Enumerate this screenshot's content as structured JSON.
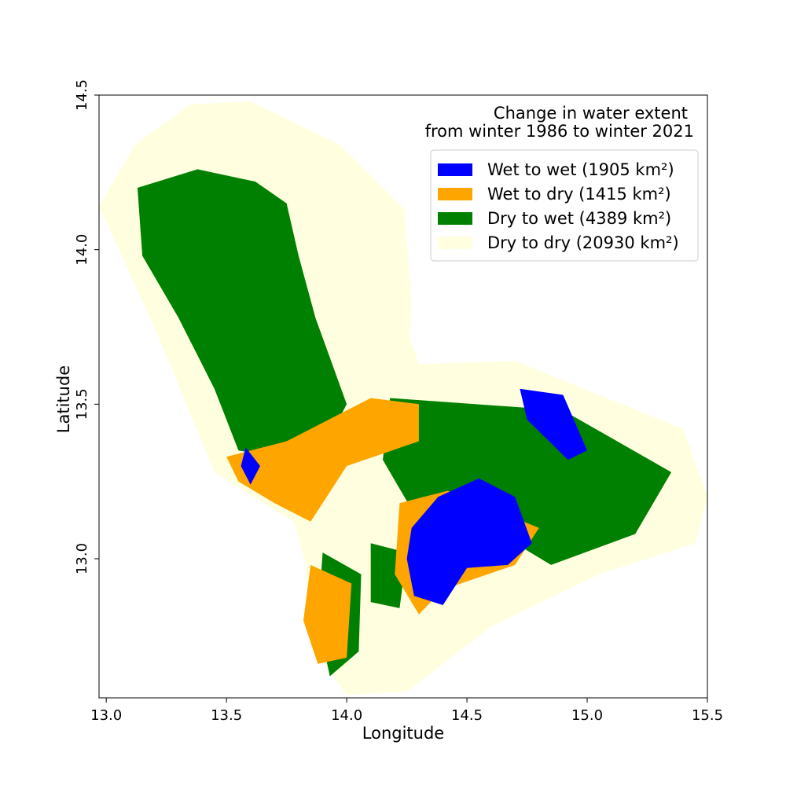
{
  "chart_data": {
    "type": "map",
    "title_lines": [
      "Change in water extent",
      "from winter 1986 to winter 2021"
    ],
    "xlabel": "Longitude",
    "ylabel": "Latitude",
    "xlim": [
      12.97,
      15.5
    ],
    "ylim": [
      12.55,
      14.5
    ],
    "xticks": [
      13.0,
      13.5,
      14.0,
      14.5,
      15.0,
      15.5
    ],
    "xtick_labels": [
      "13.0",
      "13.5",
      "14.0",
      "14.5",
      "15.0",
      "15.5"
    ],
    "yticks": [
      13.0,
      13.5,
      14.0,
      14.5
    ],
    "ytick_labels": [
      "13.0",
      "13.5",
      "14.0",
      "14.5"
    ],
    "legend_position": "upper right",
    "categories": [
      {
        "name": "Wet to wet",
        "area_km2": "1905",
        "color": "#0000ff"
      },
      {
        "name": "Wet to dry",
        "area_km2": "1415",
        "color": "#ffa500"
      },
      {
        "name": "Dry to wet",
        "area_km2": "4389",
        "color": "#008000"
      },
      {
        "name": "Dry to dry",
        "area_km2": "20930",
        "color": "#ffffe0"
      }
    ],
    "legend_labels": [
      "Wet to wet (1905 km²)",
      "Wet to dry (1415 km²)",
      "Dry to wet (4389 km²)",
      "Dry to dry (20930 km²)"
    ],
    "study_area_outline": [
      [
        12.97,
        14.14
      ],
      [
        13.12,
        14.34
      ],
      [
        13.35,
        14.47
      ],
      [
        13.6,
        14.48
      ],
      [
        13.97,
        14.34
      ],
      [
        14.24,
        14.13
      ],
      [
        14.27,
        13.82
      ],
      [
        14.26,
        13.72
      ],
      [
        14.3,
        13.63
      ],
      [
        14.7,
        13.64
      ],
      [
        15.4,
        13.42
      ],
      [
        15.5,
        13.2
      ],
      [
        15.45,
        13.05
      ],
      [
        15.05,
        12.95
      ],
      [
        14.6,
        12.78
      ],
      [
        14.25,
        12.57
      ],
      [
        14.0,
        12.56
      ],
      [
        13.85,
        12.72
      ],
      [
        13.83,
        12.98
      ],
      [
        13.78,
        13.12
      ],
      [
        13.45,
        13.28
      ],
      [
        13.2,
        13.75
      ],
      [
        12.97,
        14.14
      ]
    ],
    "regions": [
      {
        "category": "Dry to wet",
        "polygon": [
          [
            13.13,
            14.2
          ],
          [
            13.38,
            14.26
          ],
          [
            13.62,
            14.22
          ],
          [
            13.75,
            14.15
          ],
          [
            13.8,
            13.98
          ],
          [
            13.87,
            13.78
          ],
          [
            14.0,
            13.5
          ],
          [
            13.92,
            13.38
          ],
          [
            13.7,
            13.33
          ],
          [
            13.55,
            13.35
          ],
          [
            13.45,
            13.55
          ],
          [
            13.3,
            13.78
          ],
          [
            13.15,
            13.98
          ]
        ]
      },
      {
        "category": "Dry to wet",
        "polygon": [
          [
            14.18,
            13.52
          ],
          [
            14.9,
            13.48
          ],
          [
            15.35,
            13.28
          ],
          [
            15.2,
            13.08
          ],
          [
            14.85,
            12.98
          ],
          [
            14.7,
            13.05
          ],
          [
            14.3,
            13.12
          ],
          [
            14.15,
            13.32
          ]
        ]
      },
      {
        "category": "Dry to wet",
        "polygon": [
          [
            13.9,
            13.02
          ],
          [
            14.06,
            12.95
          ],
          [
            14.05,
            12.7
          ],
          [
            13.93,
            12.62
          ],
          [
            13.88,
            12.8
          ]
        ]
      },
      {
        "category": "Dry to wet",
        "polygon": [
          [
            14.1,
            13.05
          ],
          [
            14.25,
            13.02
          ],
          [
            14.22,
            12.84
          ],
          [
            14.1,
            12.86
          ]
        ]
      },
      {
        "category": "Wet to dry",
        "polygon": [
          [
            13.5,
            13.33
          ],
          [
            13.75,
            13.38
          ],
          [
            14.1,
            13.52
          ],
          [
            14.3,
            13.5
          ],
          [
            14.3,
            13.38
          ],
          [
            14.0,
            13.3
          ],
          [
            13.85,
            13.12
          ],
          [
            13.7,
            13.18
          ],
          [
            13.55,
            13.25
          ]
        ]
      },
      {
        "category": "Wet to dry",
        "polygon": [
          [
            13.85,
            12.98
          ],
          [
            14.02,
            12.92
          ],
          [
            14.0,
            12.68
          ],
          [
            13.88,
            12.66
          ],
          [
            13.82,
            12.8
          ]
        ]
      },
      {
        "category": "Wet to dry",
        "polygon": [
          [
            14.22,
            13.18
          ],
          [
            14.42,
            13.22
          ],
          [
            14.8,
            13.1
          ],
          [
            14.7,
            12.98
          ],
          [
            14.4,
            12.9
          ],
          [
            14.3,
            12.82
          ],
          [
            14.2,
            12.95
          ]
        ]
      },
      {
        "category": "Wet to wet",
        "polygon": [
          [
            14.27,
            13.1
          ],
          [
            14.38,
            13.2
          ],
          [
            14.55,
            13.26
          ],
          [
            14.7,
            13.2
          ],
          [
            14.77,
            13.05
          ],
          [
            14.67,
            12.98
          ],
          [
            14.5,
            12.97
          ],
          [
            14.4,
            12.85
          ],
          [
            14.28,
            12.88
          ],
          [
            14.25,
            13.0
          ]
        ]
      },
      {
        "category": "Wet to wet",
        "polygon": [
          [
            14.72,
            13.55
          ],
          [
            14.9,
            13.53
          ],
          [
            15.0,
            13.35
          ],
          [
            14.92,
            13.32
          ],
          [
            14.75,
            13.45
          ]
        ]
      },
      {
        "category": "Wet to wet",
        "polygon": [
          [
            13.58,
            13.36
          ],
          [
            13.64,
            13.3
          ],
          [
            13.6,
            13.24
          ],
          [
            13.56,
            13.3
          ]
        ]
      }
    ]
  }
}
